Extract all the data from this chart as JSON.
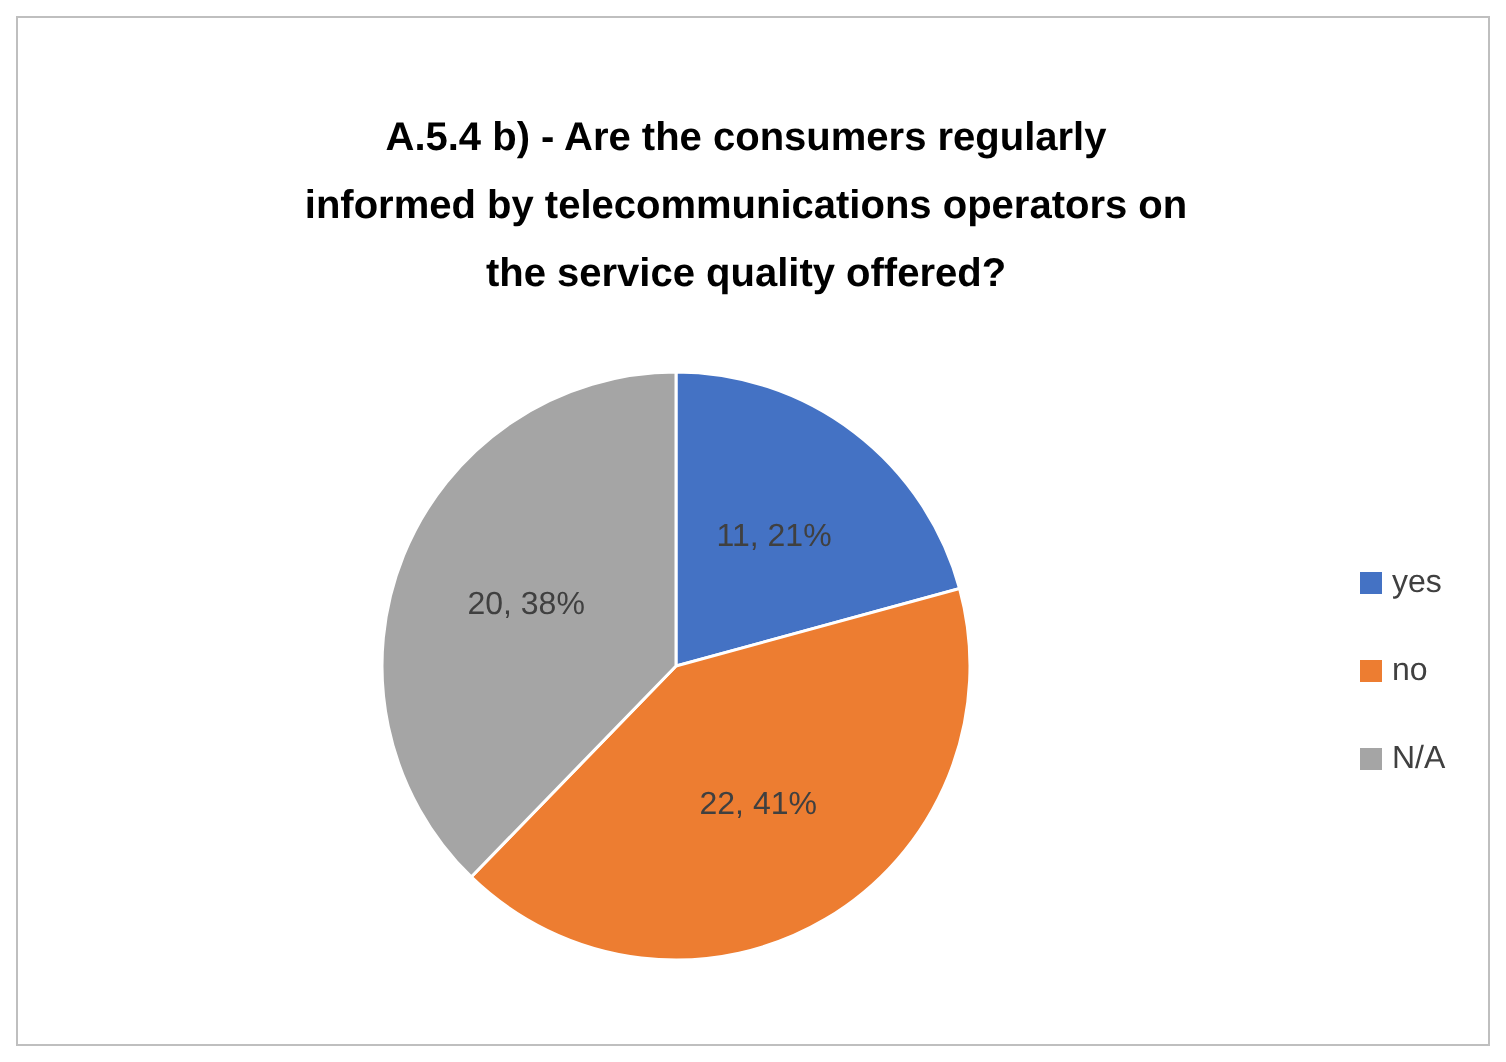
{
  "chart_data": {
    "type": "pie",
    "title": "A.5.4 b) - Are the consumers regularly informed by telecommunications operators on the service quality offered?",
    "categories": [
      "yes",
      "no",
      "N/A"
    ],
    "values": [
      11,
      22,
      20
    ],
    "colors": [
      "#4472c4",
      "#ed7d31",
      "#a5a5a5"
    ],
    "value_labels": [
      "11, 21%",
      "22, 41%",
      "20, 38%"
    ],
    "legend": "right"
  }
}
